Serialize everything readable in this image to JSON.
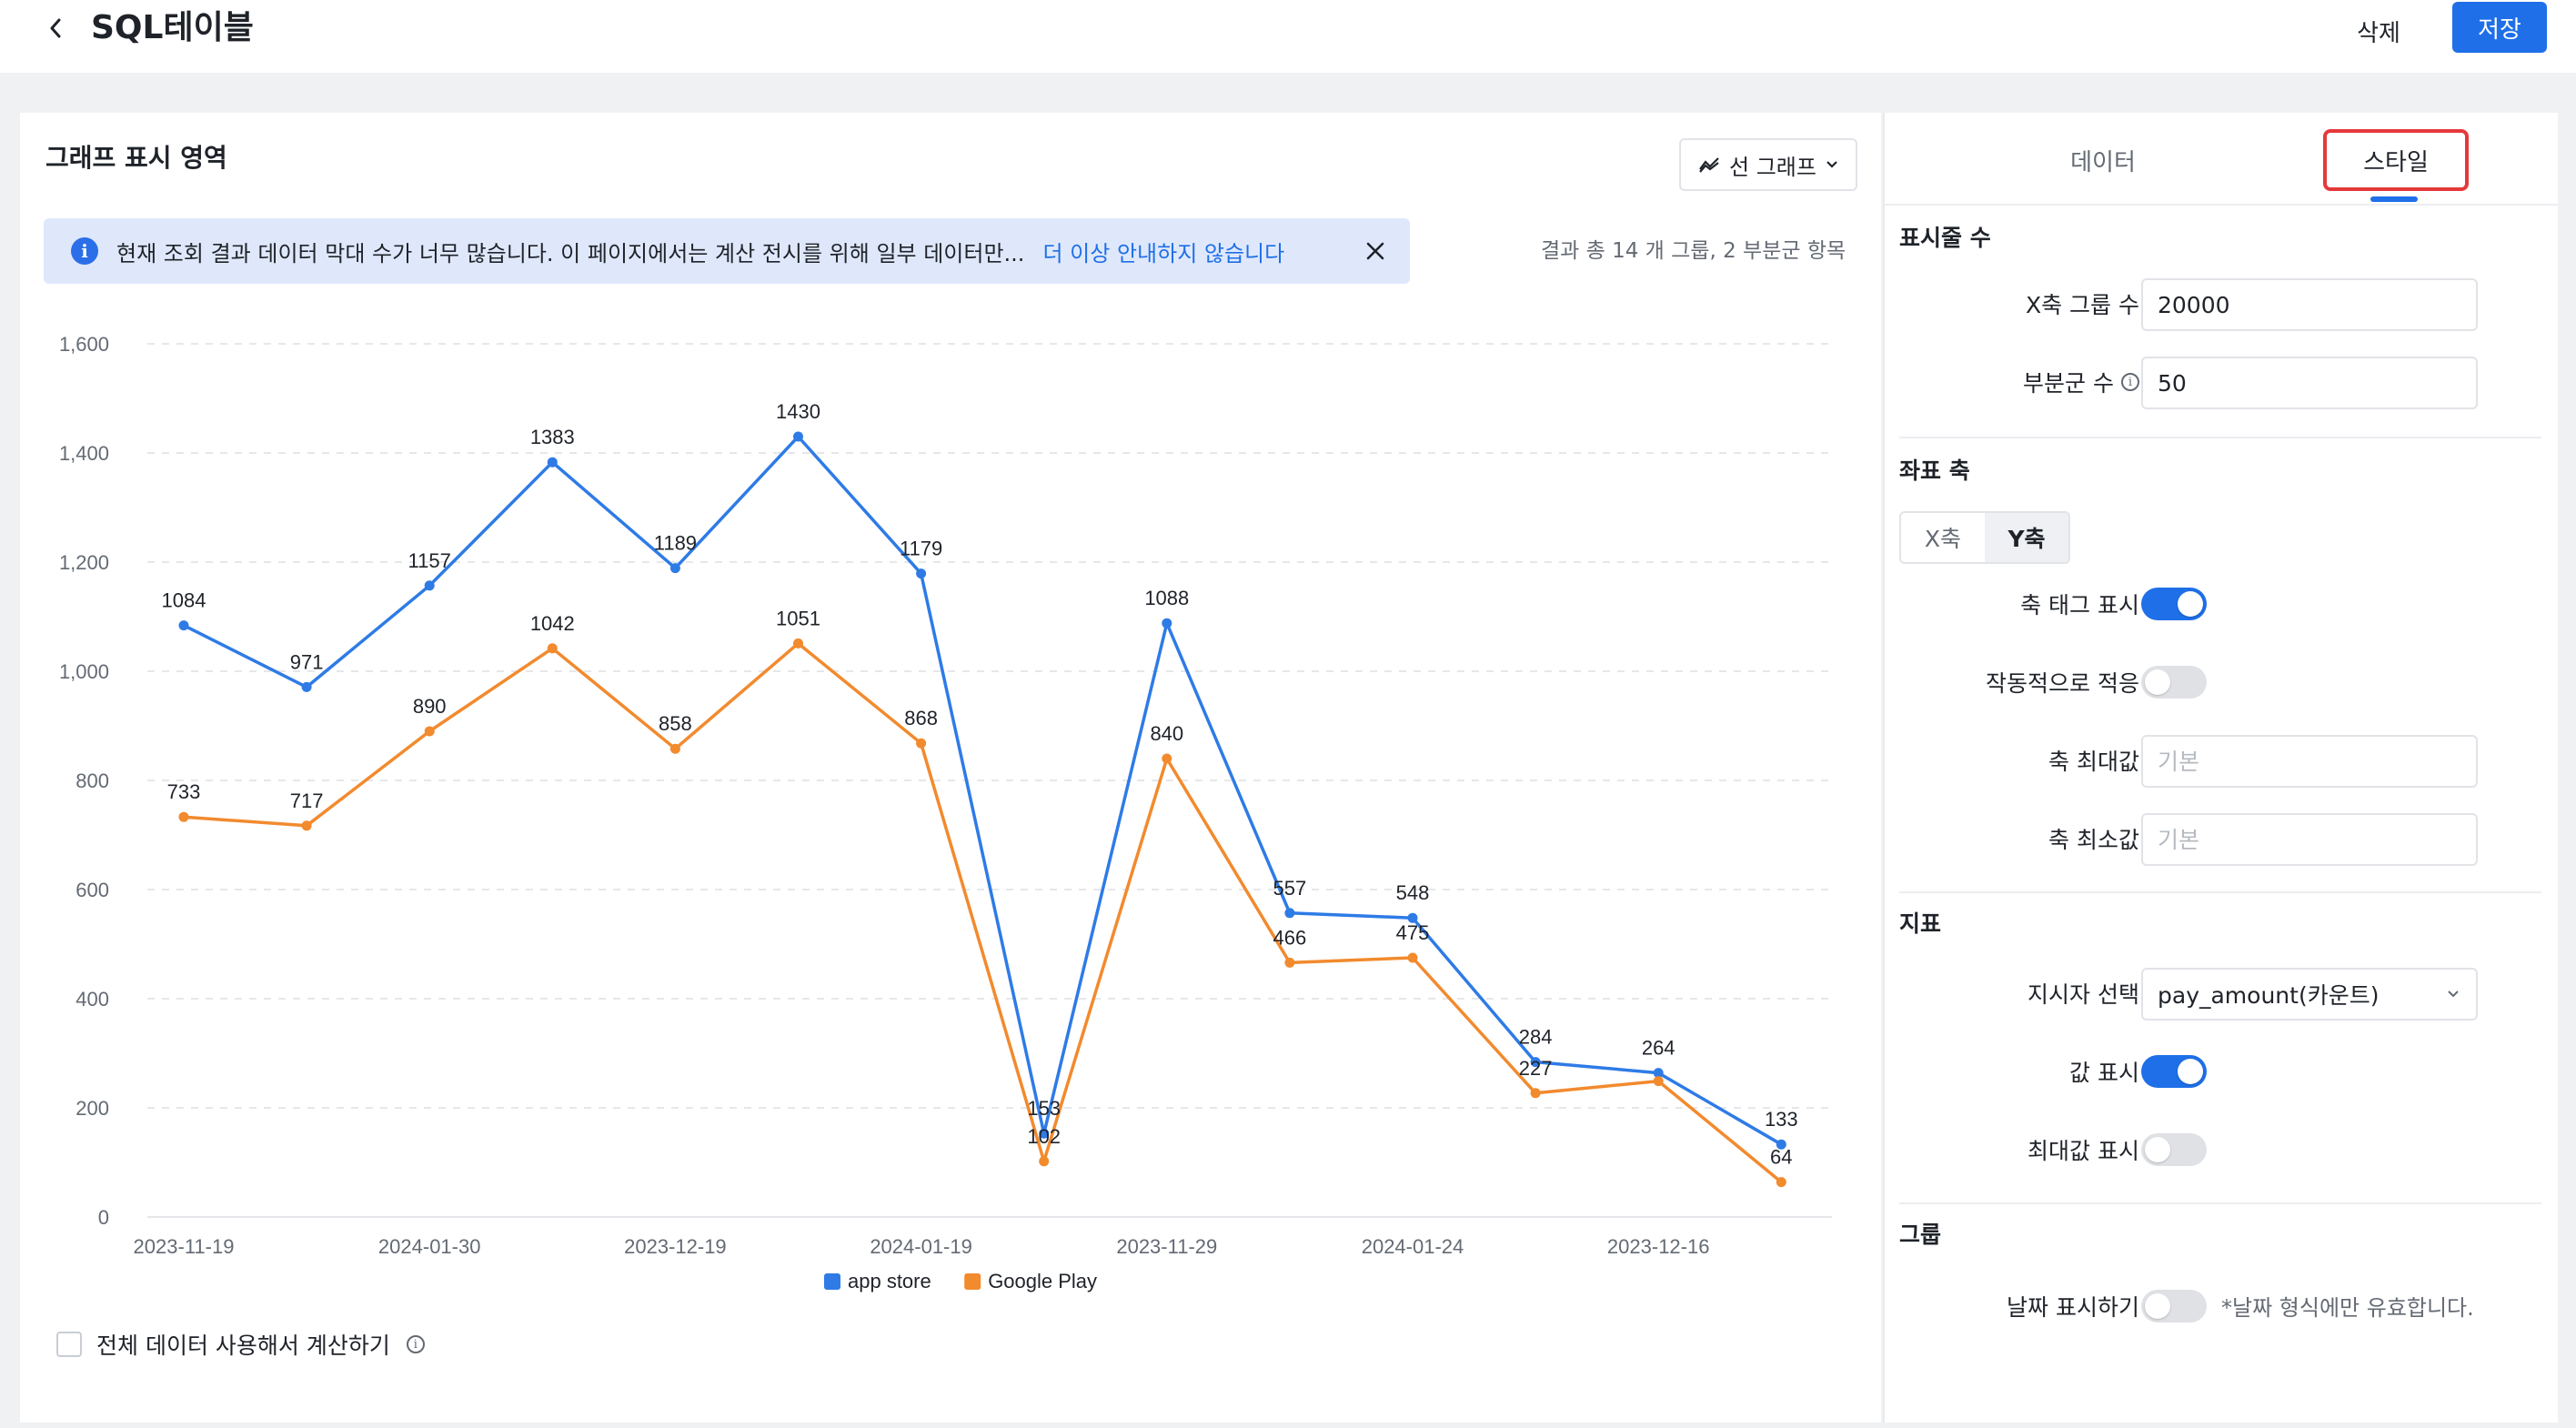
{
  "header": {
    "title": "SQL테이블",
    "delete_label": "삭제",
    "save_label": "저장"
  },
  "chart_panel": {
    "heading": "그래프 표시 영역",
    "chart_type_label": "선 그래프",
    "notice_text": "현재 조회 결과 데이터 막대 수가 너무 많습니다. 이 페이지에서는 계산 전시를 위해 일부 데이터만...",
    "notice_link": "더 이상 안내하지 않습니다",
    "result_summary": "결과 총 14 개 그룹, 2 부분군 항목",
    "full_data_label": "전체 데이터 사용해서 계산하기"
  },
  "chart_data": {
    "type": "line",
    "x": [
      "2023-11-19",
      "",
      "2024-01-30",
      "",
      "2023-12-19",
      "",
      "2024-01-19",
      "",
      "2023-11-29",
      "",
      "2024-01-24",
      "",
      "2023-12-16",
      ""
    ],
    "series": [
      {
        "name": "app store",
        "color": "#2e7be6",
        "values": [
          1084,
          971,
          1157,
          1383,
          1189,
          1430,
          1179,
          153,
          1088,
          557,
          548,
          284,
          264,
          133
        ]
      },
      {
        "name": "Google Play",
        "color": "#f28a2e",
        "values": [
          733,
          717,
          890,
          1042,
          858,
          1051,
          868,
          102,
          840,
          466,
          475,
          227,
          249,
          64
        ]
      }
    ],
    "value_labels": {
      "app store": [
        "1084",
        "971",
        "1157",
        "1383",
        "1189",
        "1430",
        "1179",
        "153",
        "1088",
        "557",
        "548",
        "284",
        "264",
        "133"
      ],
      "Google Play": [
        "733",
        "717",
        "890",
        "1042",
        "858",
        "1051",
        "868",
        "102",
        "840",
        "466",
        "475",
        "227",
        "",
        "64"
      ]
    },
    "ylim": [
      0,
      1600
    ],
    "yticks": [
      0,
      200,
      400,
      600,
      800,
      1000,
      1200,
      1400,
      1600
    ],
    "ytick_labels": [
      "0",
      "200",
      "400",
      "600",
      "800",
      "1,000",
      "1,200",
      "1,400",
      "1,600"
    ],
    "grid": true,
    "legend": "bottom-center"
  },
  "side_panel": {
    "tab_data": "데이터",
    "tab_style": "스타일",
    "section_count": "표시줄 수",
    "x_group_label": "X축 그룹 수",
    "x_group_value": "20000",
    "subgroup_label": "부분군 수",
    "subgroup_value": "50",
    "section_axis": "좌표 축",
    "axis_x": "X축",
    "axis_y": "Y축",
    "show_axis_tag": "축 태그 표시",
    "auto_fit": "작동적으로 적응",
    "axis_max": "축 최대값",
    "axis_min": "축 최소값",
    "placeholder_default": "기본",
    "section_metric": "지표",
    "indicator_label": "지시자 선택",
    "indicator_value": "pay_amount(카운트)",
    "show_value": "값 표시",
    "show_max": "최대값 표시",
    "section_group": "그룹",
    "show_date": "날짜 표시하기",
    "date_hint": "*날짜 형식에만 유효합니다."
  }
}
